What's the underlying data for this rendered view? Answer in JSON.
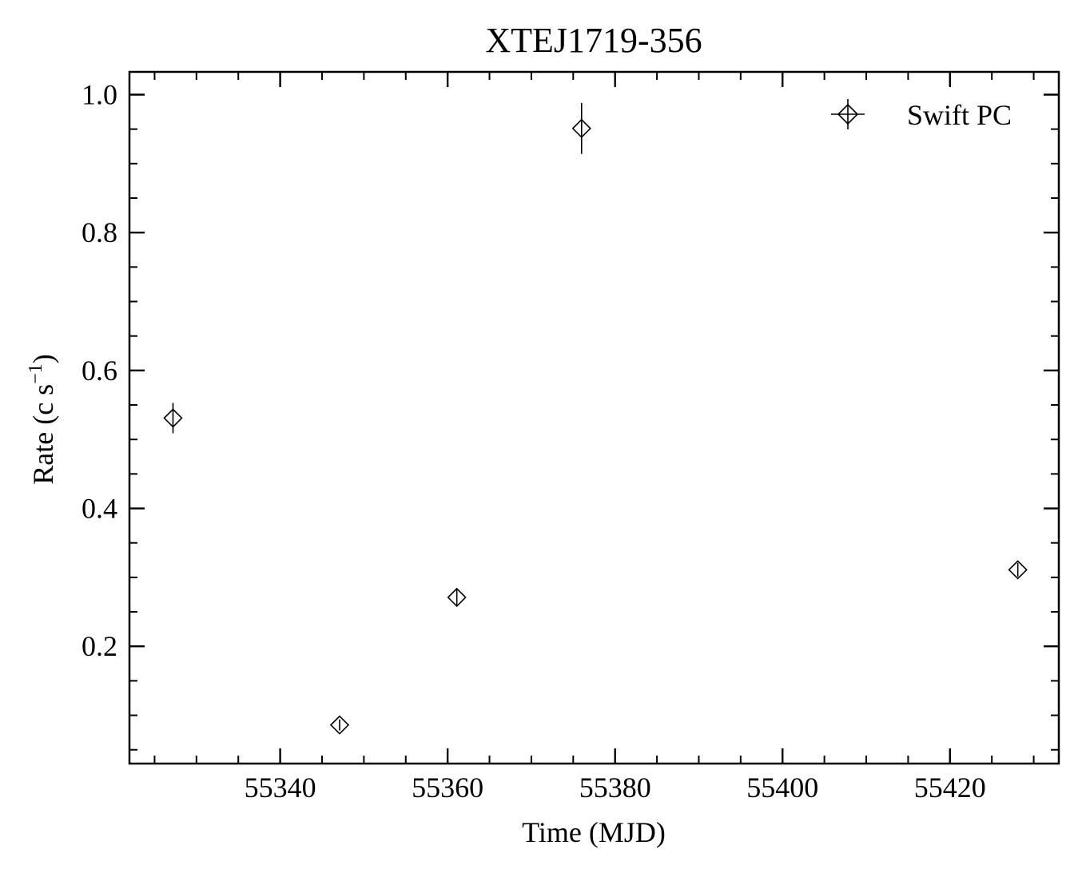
{
  "chart_data": {
    "type": "scatter",
    "title": "XTEJ1719-356",
    "xlabel": "Time (MJD)",
    "ylabel": "Rate (c s",
    "ylabel_superscript": "−1",
    "ylabel_close": ")",
    "xlim": [
      55322,
      55433
    ],
    "ylim": [
      0.03,
      1.033
    ],
    "x_ticks": [
      55340,
      55360,
      55380,
      55400,
      55420
    ],
    "x_tick_labels": [
      "55340",
      "55360",
      "55380",
      "55400",
      "55420"
    ],
    "y_ticks": [
      0.2,
      0.4,
      0.6,
      0.8,
      1.0
    ],
    "y_tick_labels": [
      "0.2",
      "0.4",
      "0.6",
      "0.8",
      "1.0"
    ],
    "grid": false,
    "legend_position": "top-right",
    "series": [
      {
        "name": "Swift PC",
        "marker": "diamond",
        "color": "#000000",
        "points": [
          {
            "x": 55327.2,
            "y": 0.531,
            "yerr": 0.022
          },
          {
            "x": 55347.1,
            "y": 0.086,
            "yerr": 0.008
          },
          {
            "x": 55361.1,
            "y": 0.271,
            "yerr": 0.013
          },
          {
            "x": 55376.0,
            "y": 0.951,
            "yerr": 0.037
          },
          {
            "x": 55428.1,
            "y": 0.311,
            "yerr": 0.01
          }
        ]
      }
    ]
  }
}
